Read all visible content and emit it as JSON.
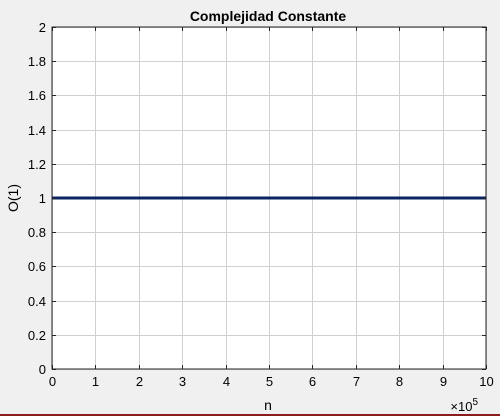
{
  "chart_data": {
    "type": "line",
    "title": "Complejidad Constante",
    "xlabel": "n",
    "ylabel": "O(1)",
    "x_exponent_label": "×10",
    "x_exponent_power": "5",
    "xlim": [
      0,
      1000000
    ],
    "ylim": [
      0,
      2
    ],
    "x_tick_values": [
      0,
      100000,
      200000,
      300000,
      400000,
      500000,
      600000,
      700000,
      800000,
      900000,
      1000000
    ],
    "x_tick_labels": [
      "0",
      "1",
      "2",
      "3",
      "4",
      "5",
      "6",
      "7",
      "8",
      "9",
      "10"
    ],
    "y_tick_values": [
      0,
      0.2,
      0.4,
      0.6,
      0.8,
      1,
      1.2,
      1.4,
      1.6,
      1.8,
      2
    ],
    "y_tick_labels": [
      "0",
      "0.2",
      "0.4",
      "0.6",
      "0.8",
      "1",
      "1.2",
      "1.4",
      "1.6",
      "1.8",
      "2"
    ],
    "grid": true,
    "series": [
      {
        "x": [
          0,
          1000000
        ],
        "y": [
          1,
          1
        ],
        "color": "#0b2463"
      }
    ]
  },
  "colors": {
    "figure_background": "#f0f0f0",
    "axes_background": "#ffffff",
    "grid": "#d0d0d0",
    "axes_border": "#262626",
    "line": "#0b2463"
  }
}
